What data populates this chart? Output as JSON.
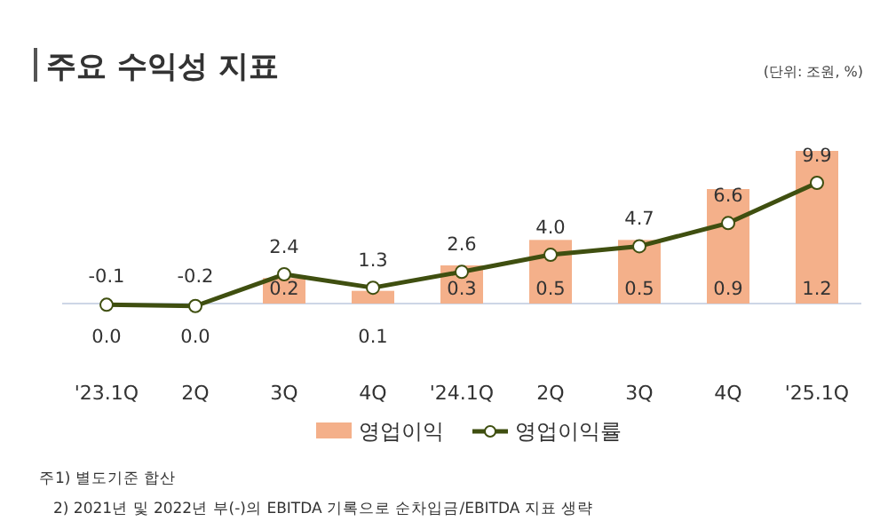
{
  "chart_data": {
    "type": "bar",
    "title": "주요 수익성 지표",
    "annotations": [
      "(단위: 조원, %)",
      "주1) 별도기준 합산",
      "2) 2021년 및 2022년 부(-)의 EBITDA 기록으로 순차입금/EBITDA 지표 생략"
    ],
    "categories": [
      "'23.1Q",
      "2Q",
      "3Q",
      "4Q",
      "'24.1Q",
      "2Q",
      "3Q",
      "4Q",
      "'25.1Q"
    ],
    "series": [
      {
        "name": "영업이익",
        "color": "#f4b08a",
        "values": [
          0.0,
          0.0,
          0.2,
          0.1,
          0.3,
          0.5,
          0.5,
          0.9,
          1.2
        ],
        "value_labels": [
          "0.0",
          "0.0",
          "0.2",
          "0.1",
          "0.3",
          "0.5",
          "0.5",
          "0.9",
          "1.2"
        ]
      },
      {
        "name": "영업이익률",
        "type": "line",
        "axis": "y2",
        "color": "#3f4f10",
        "marker": "circle",
        "values": [
          -0.1,
          -0.2,
          2.4,
          1.3,
          2.6,
          4.0,
          4.7,
          6.6,
          9.9
        ],
        "value_labels": [
          "-0.1",
          "-0.2",
          "2.4",
          "1.3",
          "2.6",
          "4.0",
          "4.7",
          "6.6",
          "9.9"
        ]
      }
    ],
    "legend": "bottom"
  }
}
